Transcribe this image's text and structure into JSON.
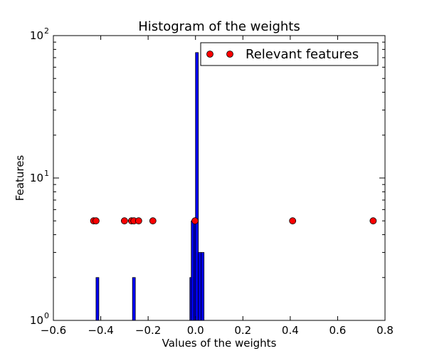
{
  "chart_data": {
    "type": "bar",
    "title": "Histogram of the weights",
    "xlabel": "Values of the weights",
    "ylabel": "Features",
    "xlim": [
      -0.6,
      0.8
    ],
    "ylim": [
      1,
      100
    ],
    "yscale": "log",
    "grid": false,
    "x_ticks": [
      -0.6,
      -0.4,
      -0.2,
      0.0,
      0.2,
      0.4,
      0.6,
      0.8
    ],
    "x_tick_labels": [
      "−0.6",
      "−0.4",
      "−0.2",
      "0.0",
      "0.2",
      "0.4",
      "0.6",
      "0.8"
    ],
    "y_ticks": [
      {
        "value": 1,
        "base": "10",
        "exp": "0"
      },
      {
        "value": 10,
        "base": "10",
        "exp": "1"
      },
      {
        "value": 100,
        "base": "10",
        "exp": "2"
      }
    ],
    "bar_width": 0.012,
    "bar_color": "#0000ff",
    "bars": [
      {
        "x": -0.42,
        "count": 2
      },
      {
        "x": -0.266,
        "count": 2
      },
      {
        "x": -0.024,
        "count": 2
      },
      {
        "x": -0.018,
        "count": 5
      },
      {
        "x": -0.006,
        "count": 5
      },
      {
        "x": 0.0,
        "count": 76
      },
      {
        "x": 0.012,
        "count": 3
      },
      {
        "x": 0.024,
        "count": 3
      }
    ],
    "series": [
      {
        "name": "Relevant features",
        "marker": "circle",
        "color": "#ff0000",
        "y": 5,
        "x": [
          -0.43,
          -0.42,
          -0.3,
          -0.27,
          -0.26,
          -0.24,
          -0.18,
          -0.002,
          0.41,
          0.75
        ]
      }
    ],
    "legend": {
      "label": "Relevant features",
      "position": "top-right"
    }
  }
}
